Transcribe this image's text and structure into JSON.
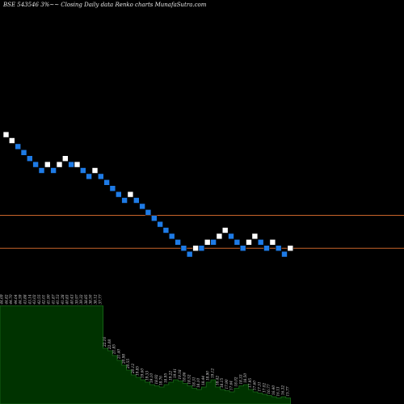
{
  "chart_data": {
    "type": "renko",
    "title": "BSE 543546  3%~~ Closing Daily data  Renko  charts MunafaSutra.com",
    "colors": {
      "background": "#000000",
      "up_brick": "#ffffff",
      "down_brick": "#1e7be6",
      "reference_line": "#c8642a",
      "volume_fill": "#003300",
      "volume_outline": "#1a6b1a",
      "label_text": "#dddddd"
    },
    "bricks": [
      {
        "dir": "up",
        "level": 6
      },
      {
        "dir": "up",
        "level": 5
      },
      {
        "dir": "down",
        "level": 4
      },
      {
        "dir": "down",
        "level": 3
      },
      {
        "dir": "down",
        "level": 2
      },
      {
        "dir": "down",
        "level": 1
      },
      {
        "dir": "down",
        "level": 0
      },
      {
        "dir": "up",
        "level": 1
      },
      {
        "dir": "down",
        "level": 0
      },
      {
        "dir": "up",
        "level": 1
      },
      {
        "dir": "up",
        "level": 2
      },
      {
        "dir": "down",
        "level": 1
      },
      {
        "dir": "up",
        "level": 1
      },
      {
        "dir": "down",
        "level": 0
      },
      {
        "dir": "down",
        "level": -1
      },
      {
        "dir": "up",
        "level": 0
      },
      {
        "dir": "down",
        "level": -1
      },
      {
        "dir": "down",
        "level": -2
      },
      {
        "dir": "down",
        "level": -3
      },
      {
        "dir": "down",
        "level": -4
      },
      {
        "dir": "down",
        "level": -5
      },
      {
        "dir": "up",
        "level": -4
      },
      {
        "dir": "down",
        "level": -5
      },
      {
        "dir": "down",
        "level": -6
      },
      {
        "dir": "down",
        "level": -7
      },
      {
        "dir": "down",
        "level": -8
      },
      {
        "dir": "down",
        "level": -9
      },
      {
        "dir": "down",
        "level": -10
      },
      {
        "dir": "down",
        "level": -11
      },
      {
        "dir": "down",
        "level": -12
      },
      {
        "dir": "down",
        "level": -13
      },
      {
        "dir": "down",
        "level": -14
      },
      {
        "dir": "up",
        "level": -13
      },
      {
        "dir": "down",
        "level": -13
      },
      {
        "dir": "up",
        "level": -12
      },
      {
        "dir": "down",
        "level": -12
      },
      {
        "dir": "up",
        "level": -11
      },
      {
        "dir": "up",
        "level": -10
      },
      {
        "dir": "down",
        "level": -11
      },
      {
        "dir": "down",
        "level": -12
      },
      {
        "dir": "down",
        "level": -13
      },
      {
        "dir": "up",
        "level": -12
      },
      {
        "dir": "up",
        "level": -11
      },
      {
        "dir": "down",
        "level": -12
      },
      {
        "dir": "down",
        "level": -13
      },
      {
        "dir": "up",
        "level": -12
      },
      {
        "dir": "down",
        "level": -13
      },
      {
        "dir": "down",
        "level": -14
      },
      {
        "dir": "up",
        "level": -13
      }
    ],
    "reference_levels": [
      -7.5,
      -13
    ],
    "volume_profile": [
      81,
      81,
      81,
      81,
      81,
      81,
      81,
      81,
      81,
      81,
      81,
      81,
      81,
      81,
      81,
      81,
      81,
      81,
      81,
      81,
      81,
      81,
      46,
      44,
      40,
      36,
      32,
      28,
      24,
      22,
      20,
      18,
      16,
      15,
      14,
      16,
      18,
      20,
      19,
      17,
      15,
      13,
      12,
      14,
      18,
      20,
      14,
      12,
      11,
      10,
      13,
      15,
      16,
      12,
      10,
      9,
      8,
      7,
      6,
      5,
      6,
      5
    ],
    "price_labels": [
      "44.69",
      "44.82",
      "44.70",
      "44.64",
      "44.59",
      "43.88",
      "43.14",
      "43.02",
      "42.55",
      "42.01",
      "41.90",
      "41.87",
      "41.53",
      "41.28",
      "40.83",
      "40.43",
      "39.97",
      "39.32",
      "38.85",
      "38.50",
      "38.12",
      "37.77",
      "22.16",
      "22.08",
      "21.85",
      "21.40",
      "20.98",
      "20.55",
      "20.12",
      "19.85",
      "19.60",
      "19.33",
      "19.10",
      "18.92",
      "18.76",
      "18.95",
      "19.22",
      "19.41",
      "19.18",
      "18.86",
      "18.52",
      "18.31",
      "18.10",
      "18.44",
      "18.90",
      "19.12",
      "18.42",
      "18.15",
      "17.90",
      "17.64",
      "18.02",
      "18.33",
      "18.50",
      "17.95",
      "17.60",
      "17.31",
      "17.02",
      "16.77",
      "16.40",
      "16.13",
      "16.32",
      "15.77"
    ]
  }
}
